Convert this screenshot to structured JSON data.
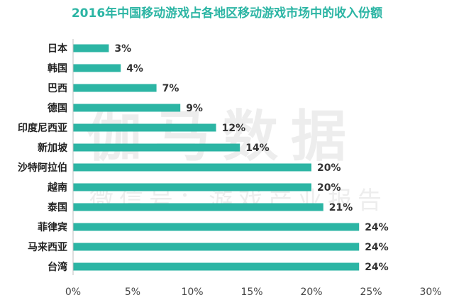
{
  "chart_data": {
    "type": "bar",
    "orientation": "horizontal",
    "title": "2016年中国移动游戏占各地区移动游戏市场中的收入份额",
    "categories": [
      "日本",
      "韩国",
      "巴西",
      "德国",
      "印度尼西亚",
      "新加坡",
      "沙特阿拉伯",
      "越南",
      "泰国",
      "菲律宾",
      "马来西亚",
      "台湾"
    ],
    "values": [
      3,
      4,
      7,
      9,
      12,
      14,
      20,
      20,
      21,
      24,
      24,
      24
    ],
    "value_labels": [
      "3%",
      "4%",
      "7%",
      "9%",
      "12%",
      "14%",
      "20%",
      "20%",
      "21%",
      "24%",
      "24%",
      "24%"
    ],
    "xlim": [
      0,
      30
    ],
    "x_ticks": [
      0,
      5,
      10,
      15,
      20,
      25,
      30
    ],
    "x_tick_labels": [
      "0%",
      "5%",
      "10%",
      "15%",
      "20%",
      "25%",
      "30%"
    ],
    "grid": false,
    "bar_color": "#2cb5a4"
  },
  "watermark": {
    "main": "伽马数据",
    "sub": "微信号：游戏产业报告"
  }
}
